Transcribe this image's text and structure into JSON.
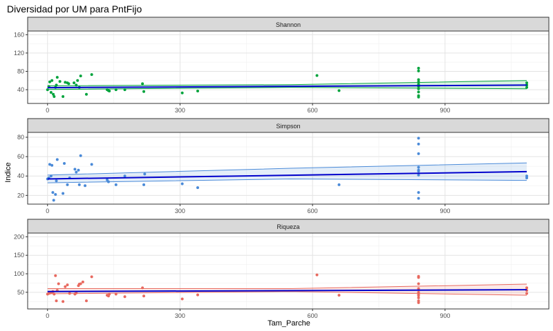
{
  "chart_data": {
    "type": "scatter",
    "title": "Diversidad por UM para PntFijo",
    "xlabel": "Tam_Parche",
    "ylabel": "Indice",
    "xlim": [
      -45,
      1135
    ],
    "x_ticks": [
      0,
      300,
      600,
      900
    ],
    "grid": true,
    "colors": {
      "line": "#0000cc",
      "strip_bg": "#d9d9d9",
      "panel_border": "#333333"
    },
    "panels": [
      {
        "strip": "Shannon",
        "color": "#00a33c",
        "ylim": [
          10,
          168
        ],
        "y_ticks": [
          40,
          80,
          120,
          160
        ],
        "fit": {
          "y0": 44.5,
          "y1": 50
        },
        "ribbon_lower": [
          [
            0,
            40.5
          ],
          [
            550,
            45
          ],
          [
            1085,
            42
          ]
        ],
        "ribbon_upper": [
          [
            0,
            48.5
          ],
          [
            550,
            51
          ],
          [
            1085,
            60
          ]
        ],
        "points": [
          [
            0,
            40
          ],
          [
            3,
            47
          ],
          [
            5,
            57
          ],
          [
            8,
            34
          ],
          [
            10,
            60
          ],
          [
            13,
            30
          ],
          [
            15,
            25
          ],
          [
            18,
            45
          ],
          [
            20,
            50
          ],
          [
            22,
            67
          ],
          [
            28,
            58
          ],
          [
            35,
            25
          ],
          [
            40,
            56
          ],
          [
            45,
            55
          ],
          [
            48,
            53
          ],
          [
            60,
            55
          ],
          [
            65,
            50
          ],
          [
            68,
            60
          ],
          [
            72,
            45
          ],
          [
            75,
            70
          ],
          [
            88,
            30
          ],
          [
            100,
            73
          ],
          [
            135,
            40
          ],
          [
            138,
            38
          ],
          [
            140,
            37
          ],
          [
            155,
            40
          ],
          [
            175,
            40
          ],
          [
            215,
            53
          ],
          [
            218,
            36
          ],
          [
            305,
            33
          ],
          [
            340,
            37
          ],
          [
            610,
            71
          ],
          [
            660,
            38
          ],
          [
            840,
            87
          ],
          [
            840,
            81
          ],
          [
            840,
            62
          ],
          [
            840,
            57
          ],
          [
            840,
            52
          ],
          [
            840,
            47
          ],
          [
            840,
            42
          ],
          [
            840,
            35
          ],
          [
            840,
            27
          ],
          [
            840,
            24
          ],
          [
            1085,
            55
          ],
          [
            1085,
            50
          ],
          [
            1085,
            45
          ]
        ]
      },
      {
        "strip": "Simpson",
        "color": "#4a8ad8",
        "ylim": [
          11,
          85
        ],
        "y_ticks": [
          20,
          40,
          60,
          80
        ],
        "fit": {
          "y0": 37,
          "y1": 44.5
        },
        "ribbon_lower": [
          [
            0,
            33
          ],
          [
            550,
            37
          ],
          [
            1085,
            35.5
          ]
        ],
        "ribbon_upper": [
          [
            0,
            41
          ],
          [
            550,
            48
          ],
          [
            1085,
            53.5
          ]
        ],
        "points": [
          [
            0,
            37
          ],
          [
            3,
            38
          ],
          [
            5,
            52
          ],
          [
            8,
            40
          ],
          [
            10,
            51
          ],
          [
            12,
            23
          ],
          [
            14,
            15
          ],
          [
            18,
            21
          ],
          [
            20,
            35
          ],
          [
            22,
            57
          ],
          [
            35,
            22
          ],
          [
            38,
            53
          ],
          [
            45,
            31
          ],
          [
            50,
            38
          ],
          [
            62,
            47
          ],
          [
            65,
            44
          ],
          [
            70,
            46
          ],
          [
            72,
            31
          ],
          [
            75,
            61
          ],
          [
            85,
            30
          ],
          [
            100,
            52
          ],
          [
            135,
            36
          ],
          [
            138,
            34
          ],
          [
            155,
            31
          ],
          [
            175,
            40
          ],
          [
            218,
            31
          ],
          [
            220,
            42
          ],
          [
            305,
            32
          ],
          [
            340,
            28
          ],
          [
            660,
            31
          ],
          [
            840,
            79
          ],
          [
            840,
            73
          ],
          [
            840,
            63
          ],
          [
            840,
            49
          ],
          [
            840,
            46
          ],
          [
            840,
            45
          ],
          [
            840,
            41
          ],
          [
            840,
            23
          ],
          [
            840,
            17
          ],
          [
            1085,
            40
          ],
          [
            1085,
            38
          ]
        ]
      },
      {
        "strip": "Riqueza",
        "color": "#e8695f",
        "ylim": [
          5,
          210
        ],
        "y_ticks": [
          50,
          100,
          150,
          200
        ],
        "fit": {
          "y0": 52,
          "y1": 57
        },
        "ribbon_lower": [
          [
            0,
            46
          ],
          [
            550,
            52
          ],
          [
            1085,
            42
          ]
        ],
        "ribbon_upper": [
          [
            0,
            60
          ],
          [
            550,
            60
          ],
          [
            1085,
            72
          ]
        ],
        "points": [
          [
            0,
            45
          ],
          [
            3,
            47
          ],
          [
            6,
            48
          ],
          [
            10,
            50
          ],
          [
            12,
            52
          ],
          [
            15,
            45
          ],
          [
            18,
            95
          ],
          [
            20,
            27
          ],
          [
            22,
            55
          ],
          [
            25,
            73
          ],
          [
            35,
            25
          ],
          [
            40,
            65
          ],
          [
            45,
            70
          ],
          [
            50,
            47
          ],
          [
            62,
            45
          ],
          [
            65,
            48
          ],
          [
            70,
            68
          ],
          [
            72,
            72
          ],
          [
            75,
            73
          ],
          [
            80,
            78
          ],
          [
            88,
            27
          ],
          [
            100,
            92
          ],
          [
            135,
            42
          ],
          [
            138,
            40
          ],
          [
            140,
            45
          ],
          [
            155,
            45
          ],
          [
            175,
            38
          ],
          [
            215,
            62
          ],
          [
            218,
            40
          ],
          [
            305,
            32
          ],
          [
            340,
            43
          ],
          [
            610,
            97
          ],
          [
            660,
            42
          ],
          [
            840,
            93
          ],
          [
            840,
            90
          ],
          [
            840,
            73
          ],
          [
            840,
            60
          ],
          [
            840,
            50
          ],
          [
            840,
            45
          ],
          [
            840,
            41
          ],
          [
            840,
            35
          ],
          [
            840,
            27
          ],
          [
            840,
            22
          ],
          [
            1085,
            62
          ],
          [
            1085,
            55
          ],
          [
            1085,
            47
          ]
        ]
      }
    ]
  }
}
